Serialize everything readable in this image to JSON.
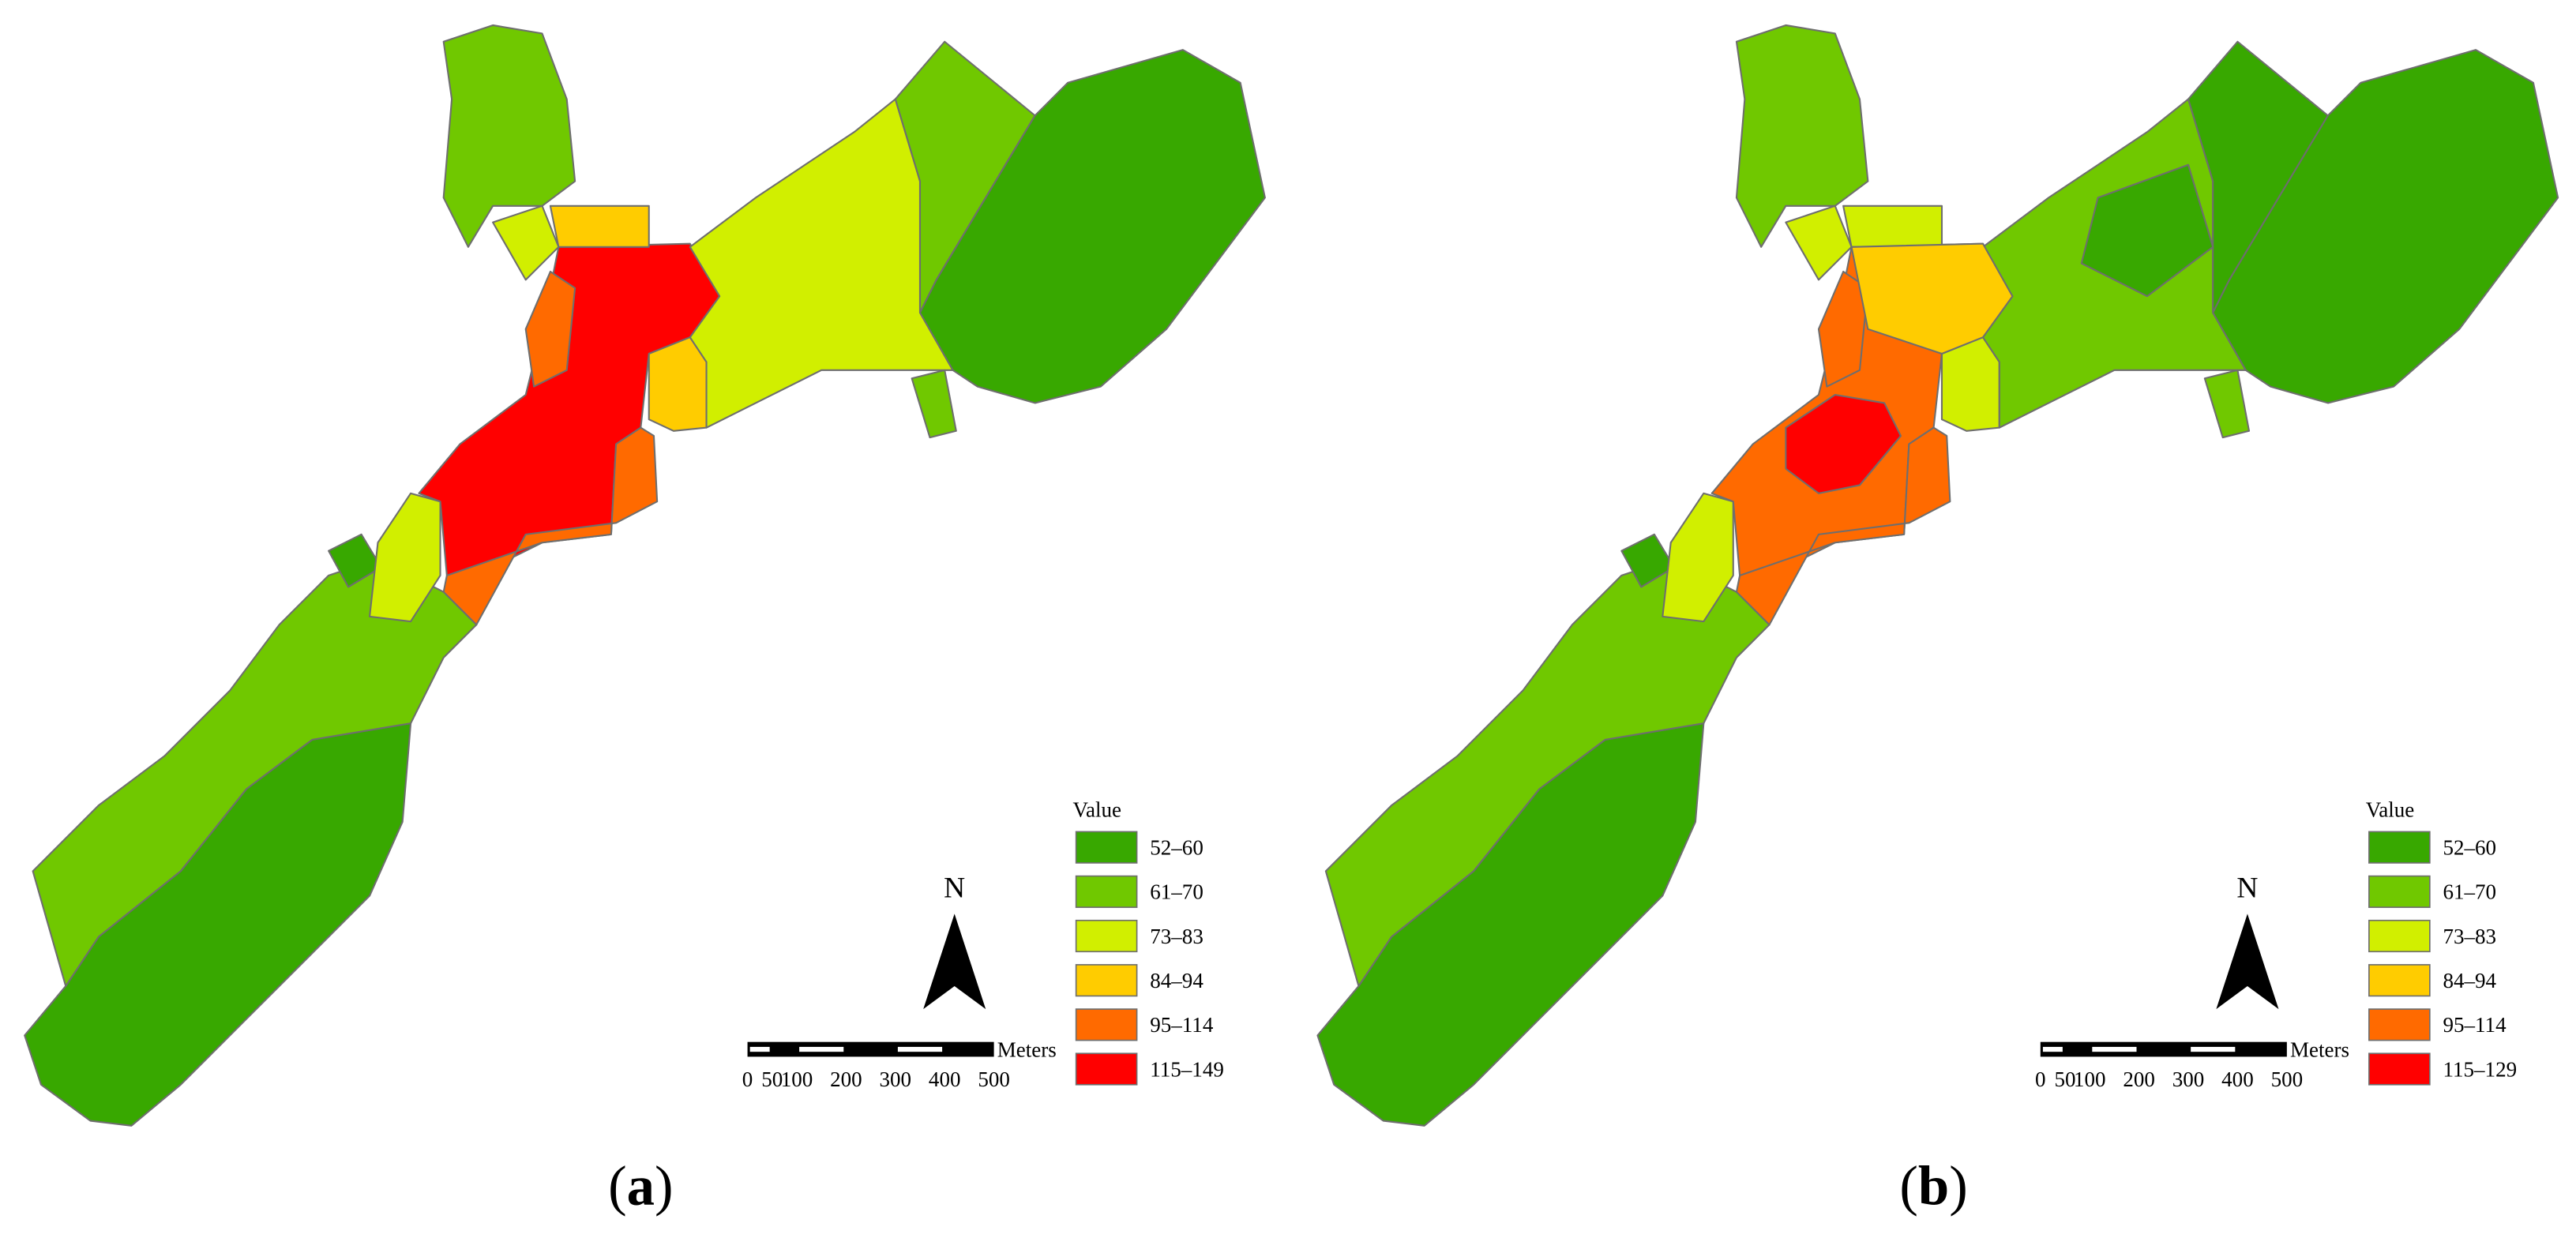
{
  "panels": [
    {
      "caption": {
        "open": "(",
        "letter": "a",
        "close": ")"
      },
      "legend": {
        "title": "Value",
        "items": [
          {
            "label": "52–60",
            "color": "#38a800"
          },
          {
            "label": "61–70",
            "color": "#70c800"
          },
          {
            "label": "73–83",
            "color": "#d1ef00"
          },
          {
            "label": "84–94",
            "color": "#ffcc00"
          },
          {
            "label": "95–114",
            "color": "#ff6a00"
          },
          {
            "label": "115–149",
            "color": "#ff0000"
          }
        ]
      },
      "north": "N",
      "scale": {
        "unit": "Meters",
        "labels": [
          0,
          50,
          100,
          200,
          300,
          400,
          500
        ]
      }
    },
    {
      "caption": {
        "open": "(",
        "letter": "b",
        "close": ")"
      },
      "legend": {
        "title": "Value",
        "items": [
          {
            "label": "52–60",
            "color": "#38a800"
          },
          {
            "label": "61–70",
            "color": "#70c800"
          },
          {
            "label": "73–83",
            "color": "#d1ef00"
          },
          {
            "label": "84–94",
            "color": "#ffcc00"
          },
          {
            "label": "95–114",
            "color": "#ff6a00"
          },
          {
            "label": "115–129",
            "color": "#ff0000"
          }
        ]
      },
      "north": "N",
      "scale": {
        "unit": "Meters",
        "labels": [
          0,
          50,
          100,
          200,
          300,
          400,
          500
        ]
      }
    }
  ]
}
